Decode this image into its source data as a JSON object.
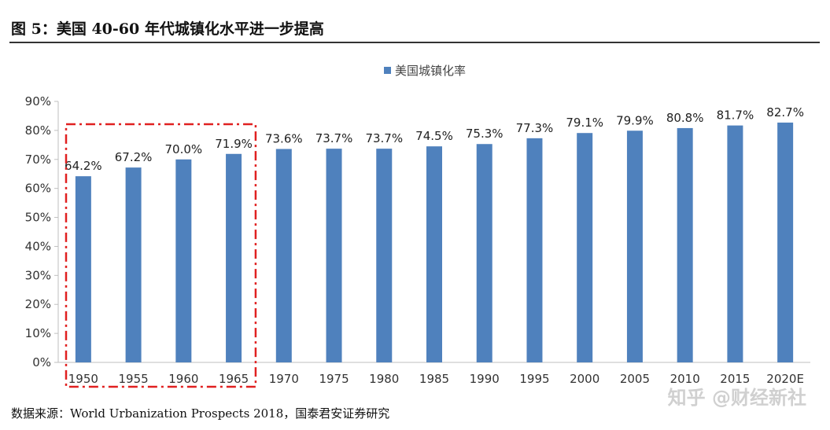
{
  "figure": {
    "title": "图 5：美国 40-60 年代城镇化水平进一步提高",
    "source": "数据来源：World Urbanization Prospects 2018，国泰君安证券研究",
    "watermark": "知乎 @财经新社"
  },
  "chart_data": {
    "type": "bar",
    "categories": [
      "1950",
      "1955",
      "1960",
      "1965",
      "1970",
      "1975",
      "1980",
      "1985",
      "1990",
      "1995",
      "2000",
      "2005",
      "2010",
      "2015",
      "2020E"
    ],
    "series": [
      {
        "name": "美国城镇化率",
        "values": [
          64.2,
          67.2,
          70.0,
          71.9,
          73.6,
          73.7,
          73.7,
          74.5,
          75.3,
          77.3,
          79.1,
          79.9,
          80.8,
          81.7,
          82.7
        ],
        "labels": [
          "64.2%",
          "67.2%",
          "70.0%",
          "71.9%",
          "73.6%",
          "73.7%",
          "73.7%",
          "74.5%",
          "75.3%",
          "77.3%",
          "79.1%",
          "79.9%",
          "80.8%",
          "81.7%",
          "82.7%"
        ]
      }
    ],
    "yticks": [
      "0%",
      "10%",
      "20%",
      "30%",
      "40%",
      "50%",
      "60%",
      "70%",
      "80%",
      "90%"
    ],
    "ylim": [
      0,
      90
    ],
    "legend_position": "top-center",
    "grid": false,
    "highlight_range": [
      "1950",
      "1965"
    ],
    "colors": {
      "bar": "#4f81bd",
      "highlight": "#e02020",
      "axis": "#bfbfbf"
    }
  }
}
